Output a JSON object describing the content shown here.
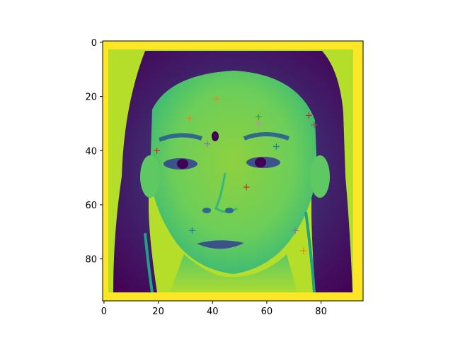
{
  "colors": {
    "frame": "#fde725",
    "background": "#ffffff",
    "axis": "#000000"
  },
  "image_description": "portrait of a young woman with long dark hair, rendered in the viridis colormap",
  "chart_data": {
    "type": "image",
    "title": "",
    "xlabel": "",
    "ylabel": "",
    "xlim": [
      -0.5,
      95.5
    ],
    "ylim": [
      95.5,
      -0.5
    ],
    "x_ticks": [
      0,
      20,
      40,
      60,
      80
    ],
    "y_ticks": [
      0,
      20,
      40,
      60,
      80
    ],
    "x_tick_labels": [
      "0",
      "20",
      "40",
      "60",
      "80"
    ],
    "y_tick_labels": [
      "0",
      "20",
      "40",
      "60",
      "80"
    ],
    "grid": false,
    "markers": [
      {
        "x": 41.5,
        "y": 21.0,
        "color": "#ff7f0e"
      },
      {
        "x": 31.5,
        "y": 28.0,
        "color": "#ff7f0e"
      },
      {
        "x": 57.0,
        "y": 27.5,
        "color": "#2ca02c"
      },
      {
        "x": 57.0,
        "y": 30.0,
        "color": "#e377c2"
      },
      {
        "x": 75.5,
        "y": 27.0,
        "color": "#d62728"
      },
      {
        "x": 77.5,
        "y": 30.5,
        "color": "#8c564b"
      },
      {
        "x": 38.0,
        "y": 37.5,
        "color": "#9467bd"
      },
      {
        "x": 63.5,
        "y": 38.5,
        "color": "#1f77b4"
      },
      {
        "x": 19.5,
        "y": 40.0,
        "color": "#d62728"
      },
      {
        "x": 52.5,
        "y": 53.5,
        "color": "#d62728"
      },
      {
        "x": 32.5,
        "y": 69.5,
        "color": "#1f77b4"
      },
      {
        "x": 70.5,
        "y": 69.5,
        "color": "#9467bd"
      },
      {
        "x": 73.5,
        "y": 77.0,
        "color": "#ff7f0e"
      }
    ]
  }
}
